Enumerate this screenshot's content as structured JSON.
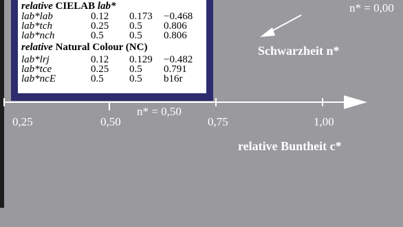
{
  "table": {
    "cielab_prefix": "relative",
    "cielab_title": "CIELAB",
    "cielab_title_italic": "lab*",
    "cielab_rows": [
      [
        "lab*lab",
        "0.12",
        "0.173",
        "−0.468"
      ],
      [
        "lab*tch",
        "0.25",
        "0.5",
        "0.806"
      ],
      [
        "lab*nch",
        "0.5",
        "0.5",
        "0.806"
      ]
    ],
    "nc_prefix": "relative",
    "nc_title": "Natural Colour (NC)",
    "nc_rows": [
      [
        "lab*lrj",
        "0.12",
        "0.129",
        "−0.482"
      ],
      [
        "lab*tce",
        "0.25",
        "0.5",
        "0.791"
      ],
      [
        "lab*ncE",
        "0.5",
        "0.5",
        "b16r"
      ]
    ]
  },
  "axis": {
    "ticks": [
      "0,25",
      "0,50",
      "0,75",
      "1,00"
    ],
    "n_mid_label": "n* = 0,50",
    "n_top_label": "n* = 0,00",
    "schwarz_label": "Schwarzheit n*",
    "bunt_label": "relative Buntheit c*"
  }
}
